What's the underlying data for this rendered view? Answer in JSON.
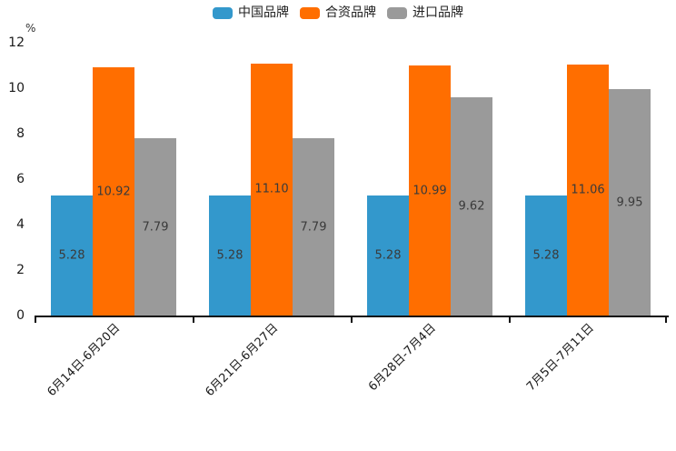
{
  "chart_data": {
    "type": "bar",
    "title": "",
    "ylabel": "%",
    "xlabel": "",
    "categories": [
      "6月14日-6月20日",
      "6月21日-6月27日",
      "6月28日-7月4日",
      "7月5日-7月11日"
    ],
    "series": [
      {
        "name": "中国品牌",
        "color": "#3398CC",
        "values": [
          5.28,
          5.28,
          5.28,
          5.28
        ]
      },
      {
        "name": "合资品牌",
        "color": "#FF6E00",
        "values": [
          10.92,
          11.1,
          10.99,
          11.06
        ]
      },
      {
        "name": "进口品牌",
        "color": "#9A9A9A",
        "values": [
          7.79,
          7.79,
          9.62,
          9.95
        ]
      }
    ],
    "ylim": [
      0,
      12
    ],
    "yticks": [
      0,
      2,
      4,
      6,
      8,
      10,
      12
    ],
    "grid": false,
    "legend_position": "top",
    "bar_label_position": "inside-center",
    "value_label_decimals": 2
  }
}
